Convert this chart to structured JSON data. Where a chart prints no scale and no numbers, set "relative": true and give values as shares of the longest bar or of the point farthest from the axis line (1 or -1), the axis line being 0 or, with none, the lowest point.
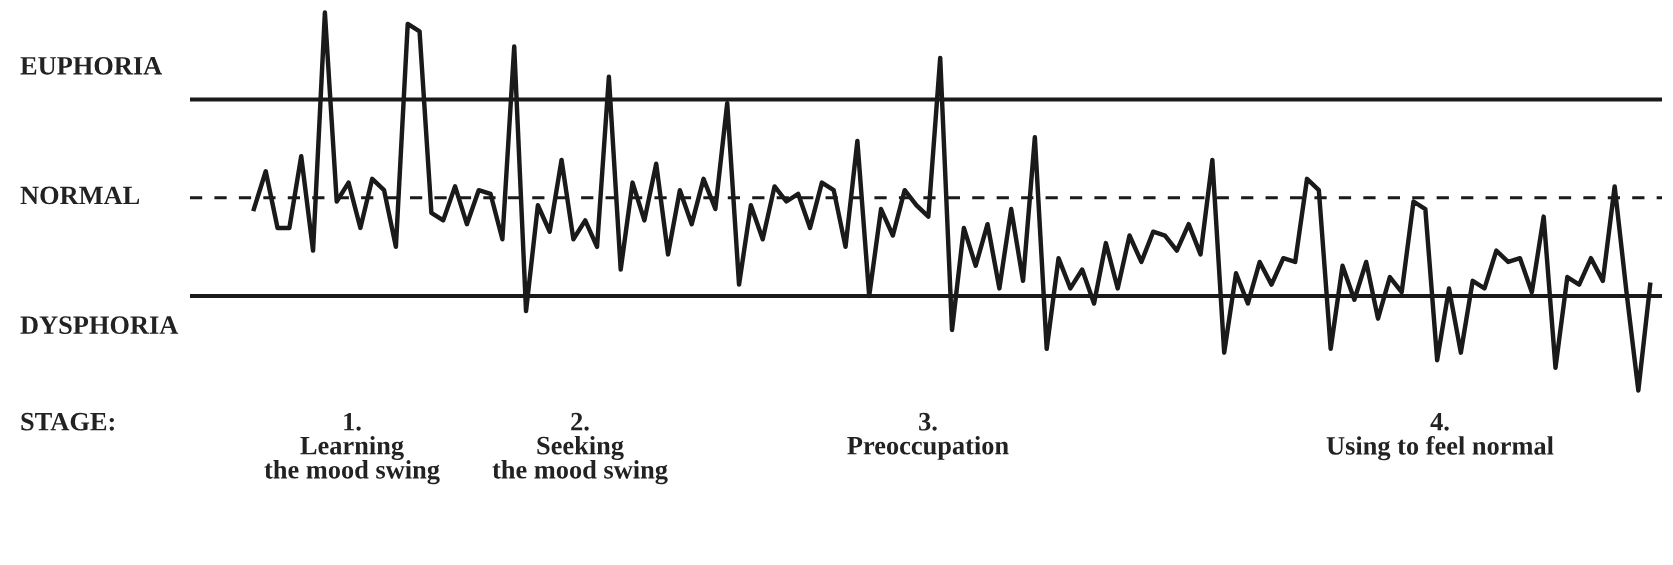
{
  "chart_data": {
    "type": "line",
    "relative": true,
    "legend": false,
    "marker": "none",
    "line_style": "solid",
    "categories": [
      null,
      null,
      null,
      null,
      null,
      null,
      null,
      null,
      null,
      null,
      null,
      null,
      null,
      null,
      null,
      null,
      null,
      null,
      null,
      null,
      null,
      null,
      null,
      null,
      null,
      null,
      null,
      null,
      null,
      null,
      null,
      null,
      null,
      null,
      null,
      null,
      null,
      null,
      null,
      null,
      null,
      null,
      null,
      null,
      null,
      null,
      null,
      null,
      null,
      null,
      null,
      null,
      null,
      null,
      null,
      null,
      null,
      null,
      null,
      null,
      null,
      null,
      null,
      null,
      null,
      null,
      null,
      null,
      null,
      null,
      null,
      null,
      null,
      null,
      null,
      null,
      null,
      null,
      null,
      null,
      null,
      null,
      null,
      null,
      null,
      null,
      null,
      null,
      null,
      null,
      null,
      null,
      null,
      null,
      null,
      null,
      null,
      null,
      null,
      null,
      null,
      null,
      null,
      null,
      null,
      null,
      null,
      null,
      null,
      null,
      null,
      null,
      null,
      null,
      null,
      null,
      null,
      null,
      null
    ],
    "series": [
      {
        "color": "#1a1a1a",
        "values": [
          0.48,
          0.58,
          0.43,
          0.43,
          0.62,
          0.37,
          1.0,
          0.5,
          0.55,
          0.43,
          0.56,
          0.53,
          0.38,
          0.97,
          0.95,
          0.47,
          0.45,
          0.54,
          0.44,
          0.53,
          0.52,
          0.4,
          0.91,
          0.21,
          0.49,
          0.42,
          0.61,
          0.4,
          0.45,
          0.38,
          0.83,
          0.32,
          0.55,
          0.45,
          0.6,
          0.36,
          0.53,
          0.44,
          0.56,
          0.48,
          0.76,
          0.28,
          0.49,
          0.4,
          0.54,
          0.5,
          0.52,
          0.43,
          0.55,
          0.53,
          0.38,
          0.66,
          0.25,
          0.48,
          0.41,
          0.53,
          0.49,
          0.46,
          0.88,
          0.16,
          0.43,
          0.33,
          0.44,
          0.27,
          0.48,
          0.29,
          0.67,
          0.11,
          0.35,
          0.27,
          0.32,
          0.23,
          0.39,
          0.27,
          0.41,
          0.34,
          0.42,
          0.41,
          0.37,
          0.44,
          0.36,
          0.61,
          0.1,
          0.31,
          0.23,
          0.34,
          0.28,
          0.35,
          0.34,
          0.56,
          0.53,
          0.11,
          0.33,
          0.24,
          0.34,
          0.19,
          0.3,
          0.26,
          0.5,
          0.48,
          0.08,
          0.27,
          0.1,
          0.29,
          0.27,
          0.37,
          0.34,
          0.35,
          0.26,
          0.46,
          0.06,
          0.3,
          0.28,
          0.35,
          0.29,
          0.54,
          0.26,
          0.0,
          0.28
        ]
      }
    ],
    "ref_lines": [
      {
        "axis": "y",
        "value": 0.77,
        "label": "EUPHORIA",
        "color": "#1a1a1a",
        "line_style": "solid"
      },
      {
        "axis": "y",
        "value": 0.51,
        "label": "NORMAL",
        "color": "#1a1a1a",
        "line_style": "dashed"
      },
      {
        "axis": "y",
        "value": 0.25,
        "label": "DYSPHORIA",
        "color": "#1a1a1a",
        "line_style": "solid"
      }
    ],
    "annotations": [
      "STAGE:",
      "1.\nLearning\nthe mood swing",
      "2.\nSeeking\nthe mood swing",
      "3.\nPreoccupation",
      "4.\nUsing to feel normal"
    ]
  }
}
